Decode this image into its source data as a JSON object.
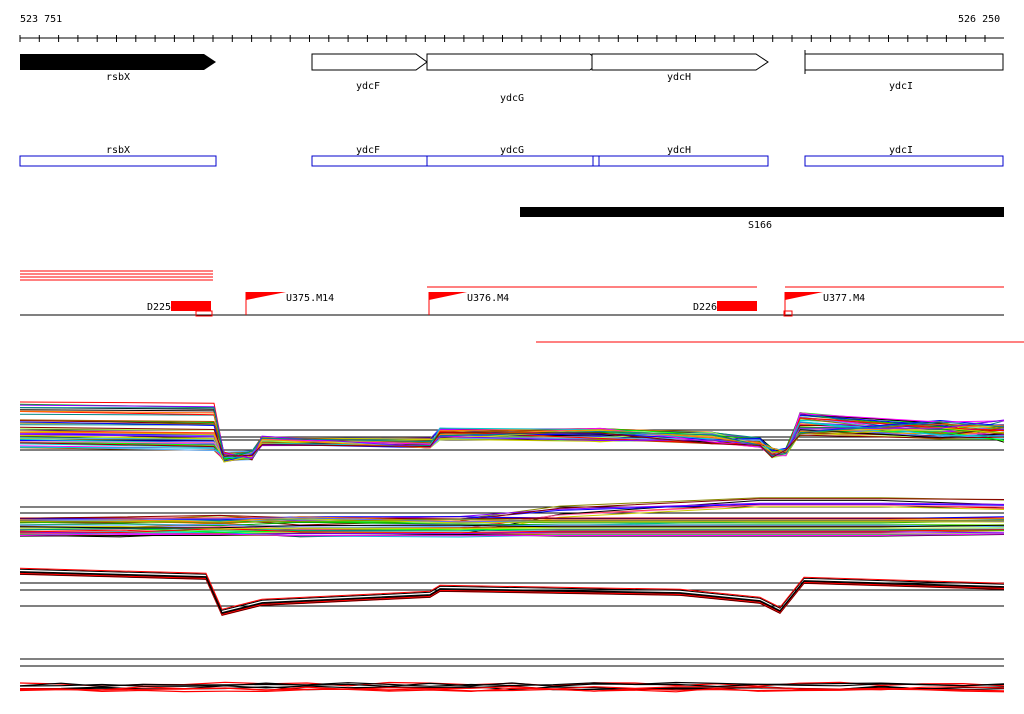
{
  "ruler": {
    "start": "523 751",
    "end": "526 250"
  },
  "genes": [
    {
      "name": "rsbX",
      "strand": "filled"
    },
    {
      "name": "ydcF",
      "strand": "open"
    },
    {
      "name": "ydcG",
      "strand": "open"
    },
    {
      "name": "ydcH",
      "strand": "open"
    },
    {
      "name": "ydcI",
      "strand": "open"
    }
  ],
  "annotation_boxes": [
    "rsbX",
    "ydcF",
    "ydcG",
    "ydcH",
    "ydcI"
  ],
  "region": {
    "label": "S166"
  },
  "features": {
    "transcripts": [
      "U375.M14",
      "U376.M4",
      "U377.M4"
    ],
    "deletions": [
      "D225",
      "D226"
    ]
  },
  "colors": {
    "gene_box": "#0000cc",
    "feature_red": "#ff0000",
    "region_bar": "#000000"
  }
}
